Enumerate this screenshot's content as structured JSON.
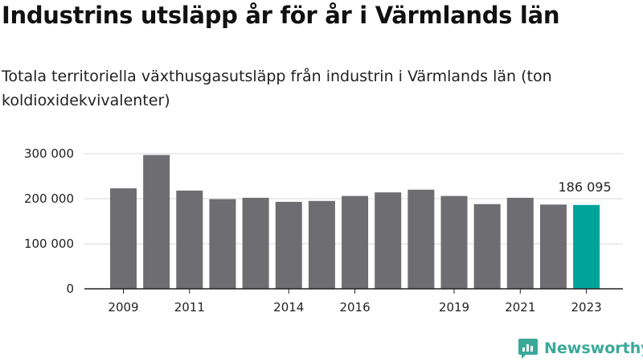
{
  "title": "Industrins utsläpp år för år i Värmlands län",
  "subtitle": "Totala territoriella växthusgasutsläpp från industrin i Värmlands län (ton koldioxidekvivalenter)",
  "brand": {
    "name": "Newsworthy",
    "icon": "newsworthy-logo-icon",
    "color": "#3aa99a"
  },
  "colors": {
    "bar": "#6e6d72",
    "highlight": "#00a39a",
    "grid": "#d9d9d9",
    "axis": "#222222"
  },
  "chart_data": {
    "type": "bar",
    "categories": [
      "2009",
      "2010",
      "2011",
      "2012",
      "2013",
      "2014",
      "2015",
      "2016",
      "2017",
      "2018",
      "2019",
      "2020",
      "2021",
      "2022",
      "2023"
    ],
    "values": [
      223000,
      297000,
      218000,
      199000,
      202000,
      193000,
      195000,
      206000,
      214000,
      220000,
      206000,
      188000,
      202000,
      187000,
      186095
    ],
    "highlight_index": 14,
    "highlight_label": "186 095",
    "x_tick_labels": [
      "2009",
      "2011",
      "2014",
      "2016",
      "2019",
      "2021",
      "2023"
    ],
    "y_ticks": [
      0,
      100000,
      200000,
      300000
    ],
    "y_tick_labels": [
      "0",
      "100 000",
      "200 000",
      "300 000"
    ],
    "ylim": [
      0,
      300000
    ],
    "grid": true,
    "legend": "none",
    "xlabel": "",
    "ylabel": ""
  }
}
